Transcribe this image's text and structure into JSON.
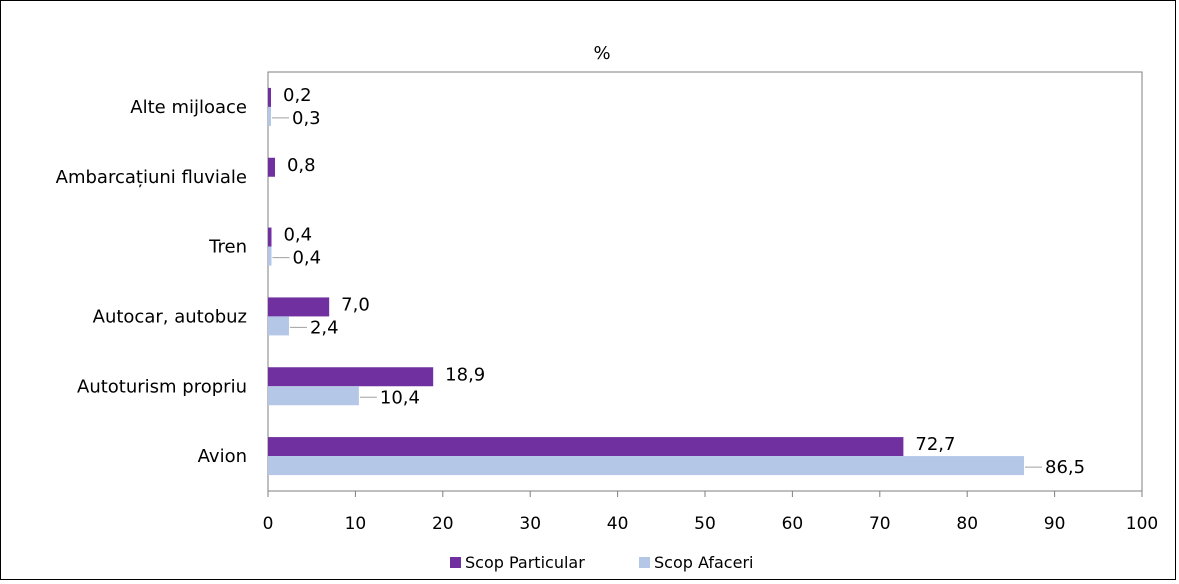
{
  "chart_data": {
    "type": "bar",
    "orientation": "horizontal",
    "title": "%",
    "categories": [
      "Alte mijloace",
      "Ambarcațiuni  fluviale",
      "Tren",
      "Autocar, autobuz",
      "Autoturism propriu",
      "Avion"
    ],
    "series": [
      {
        "name": "Scop Particular",
        "color": "#7030A0",
        "values": [
          0.2,
          0.8,
          0.4,
          7.0,
          18.9,
          72.7
        ],
        "labels": [
          "0,2",
          "0,8",
          "0,4",
          "7,0",
          "18,9",
          "72,7"
        ]
      },
      {
        "name": "Scop Afaceri",
        "color": "#B4C7E7",
        "values": [
          0.3,
          0.0,
          0.4,
          2.4,
          10.4,
          86.5
        ],
        "labels": [
          "0,3",
          "",
          "0,4",
          "2,4",
          "10,4",
          "86,5"
        ]
      }
    ],
    "xlim": [
      0,
      100
    ],
    "xticks": [
      "0",
      "10",
      "20",
      "30",
      "40",
      "50",
      "60",
      "70",
      "80",
      "90",
      "100"
    ],
    "grid": false,
    "legend_position": "bottom"
  }
}
